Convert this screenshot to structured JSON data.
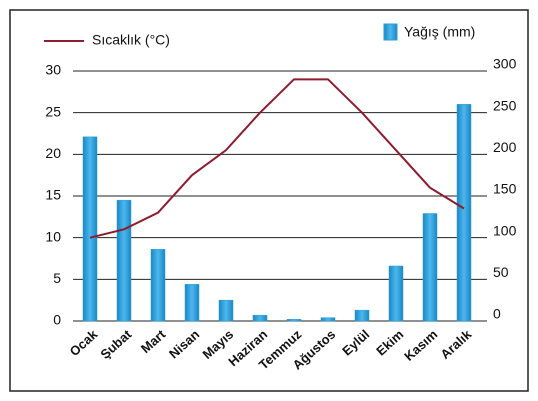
{
  "chart_data": {
    "type": "combo",
    "categories": [
      "Ocak",
      "Şubat",
      "Mart",
      "Nisan",
      "Mayıs",
      "Haziran",
      "Temmuz",
      "Ağustos",
      "Eylül",
      "Ekim",
      "Kasım",
      "Aralık"
    ],
    "series": [
      {
        "name": "Sıcaklık (°C)",
        "type": "line",
        "color": "#8e1b2e",
        "axis": "y",
        "values": [
          10,
          11,
          13,
          17.5,
          20.5,
          25,
          29,
          29,
          25,
          20.5,
          16,
          13.5
        ]
      },
      {
        "name": "Yağış (mm)",
        "type": "bar",
        "color": "#2c9ed6",
        "axis": "y2",
        "values": [
          221,
          145,
          86,
          44,
          25,
          7,
          2,
          4,
          13,
          66,
          129,
          260
        ]
      }
    ],
    "ylim": [
      0,
      30
    ],
    "yticks": [
      0,
      5,
      10,
      15,
      20,
      25,
      30
    ],
    "y2lim": [
      0,
      300
    ],
    "y2ticks": [
      0,
      50,
      100,
      150,
      200,
      250,
      300
    ],
    "grid": true
  }
}
